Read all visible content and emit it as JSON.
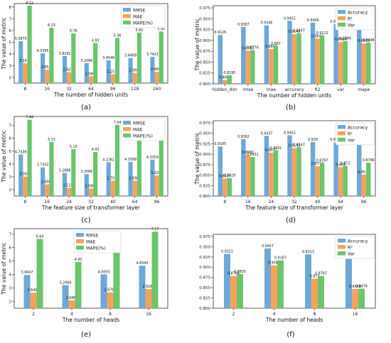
{
  "figure": {
    "colors": {
      "blue": "#6fa8d6",
      "orange": "#f5a35c",
      "green": "#6cc46c"
    },
    "panels": [
      {
        "caption": "(a)"
      },
      {
        "caption": "(b)"
      },
      {
        "caption": "(c)"
      },
      {
        "caption": "(d)"
      },
      {
        "caption": "(e)"
      },
      {
        "caption": "(f)"
      }
    ]
  },
  "chart_data": [
    {
      "type": "bar",
      "xlabel": "The number of hidden units",
      "ylabel": "The value of metric",
      "categories": [
        "8",
        "16",
        "32",
        "64",
        "96",
        "128",
        "160"
      ],
      "ylim": [
        1.5,
        8.3
      ],
      "yticks": [
        2,
        3,
        4,
        5,
        6,
        7,
        8
      ],
      "legend_position": "top-right",
      "series": [
        {
          "name": "RMSE",
          "values": [
            5.0875,
            4.0395,
            3.8192,
            3.2066,
            3.4548,
            3.6489,
            3.7423
          ],
          "labels": [
            "5.0875",
            "4.0395",
            "3.8192",
            "3.2066",
            "3.4548",
            "3.6489",
            "3.7423"
          ]
        },
        {
          "name": "MAE",
          "values": [
            3.1914,
            2.6526,
            2.4279,
            2.0866,
            2.2513,
            2.3667,
            2.4669
          ],
          "labels": [
            "3.1914",
            "2.6526",
            "2.4279",
            "2.0866",
            "2.2513",
            "2.3667",
            "2.4669"
          ]
        },
        {
          "name": "MAPE(%)",
          "values": [
            8.12,
            6.23,
            5.76,
            4.93,
            5.36,
            5.82,
            5.92
          ],
          "labels": [
            "8.12",
            "6.23",
            "5.76",
            "4.93",
            "5.36",
            "5.82",
            "5.92"
          ]
        }
      ]
    },
    {
      "type": "bar",
      "xlabel": "The number of hidden units",
      "ylabel": "The value of metric",
      "categories": [
        "hidden_dim",
        "rmse",
        "mae",
        "accuracy",
        "R2",
        "var",
        "mape"
      ],
      "ylim": [
        0.8,
        0.98
      ],
      "yticks": [
        0.8,
        0.825,
        0.85,
        0.875,
        0.9,
        0.925,
        0.95,
        0.975
      ],
      "legend_position": "top-right",
      "series": [
        {
          "name": "Accuracy",
          "values": [
            0.9126,
            0.9307,
            0.9346,
            0.9452,
            0.9409,
            0.9374,
            0.936
          ],
          "labels": [
            "0.9126",
            "0.9307",
            "0.9346",
            "0.9452",
            "0.9409",
            "0.9374",
            "0.936"
          ]
        },
        {
          "name": "R²",
          "values": [
            0.8089,
            0.8763,
            0.8802,
            0.9145,
            0.9042,
            0.8964,
            0.8931
          ],
          "labels": [
            "0.8089",
            "0.8763",
            "0.8802",
            "0.9145",
            "0.9042",
            "0.8964",
            "0.8931"
          ]
        },
        {
          "name": "Var",
          "values": [
            0.8195,
            0.8776,
            0.887,
            0.9167,
            0.9112,
            0.8986,
            0.8948
          ],
          "labels": [
            "0.8195",
            "0.8776",
            "0.887",
            "0.9167",
            "0.9112",
            "0.8986",
            "0.8948"
          ]
        }
      ]
    },
    {
      "type": "bar",
      "xlabel": "The feature size of transformer layer",
      "ylabel": "The value of metric",
      "categories": [
        "8",
        "16",
        "24",
        "32",
        "40",
        "64",
        "96"
      ],
      "ylim": [
        1.5,
        7.7
      ],
      "yticks": [
        2,
        3,
        4,
        5,
        6,
        7
      ],
      "legend_position": "top-right",
      "series": [
        {
          "name": "RMSE",
          "values": [
            4.7436,
            3.7303,
            3.2888,
            3.2066,
            4.1361,
            4.1589,
            4.3359
          ],
          "labels": [
            "4.7436",
            "3.7303",
            "3.2888",
            "3.2066",
            "4.1361",
            "4.1589",
            "4.3359"
          ]
        },
        {
          "name": "MAE",
          "values": [
            3.0089,
            2.4007,
            2.1333,
            2.0866,
            2.7021,
            2.6982,
            3.1054
          ],
          "labels": [
            "3.0089",
            "2.4007",
            "2.1333",
            "2.0866",
            "2.7021",
            "2.6982",
            "3.1054"
          ]
        },
        {
          "name": "MAPE(%)",
          "values": [
            7.44,
            5.72,
            5.15,
            4.93,
            7.04,
            6.87,
            6.71
          ],
          "labels": [
            "7.44",
            "5.72",
            "5.15",
            "4.93",
            "7.04",
            "6.87",
            "6.71"
          ]
        }
      ]
    },
    {
      "type": "bar",
      "xlabel": "The feature size of transformer layer",
      "ylabel": "The value of metric",
      "categories": [
        "8",
        "16",
        "24",
        "32",
        "40",
        "64",
        "96"
      ],
      "ylim": [
        0.8,
        0.98
      ],
      "yticks": [
        0.8,
        0.825,
        0.85,
        0.875,
        0.9,
        0.925,
        0.95,
        0.975
      ],
      "legend_position": "top-right",
      "series": [
        {
          "name": "Accuracy",
          "values": [
            0.9185,
            0.9362,
            0.9437,
            0.9452,
            0.929,
            0.9287,
            0.9259
          ],
          "labels": [
            "0.9185",
            "0.9362",
            "0.9437",
            "0.9452",
            "0.929",
            "0.9287",
            "0.9259"
          ]
        },
        {
          "name": "R²",
          "values": [
            0.8417,
            0.8981,
            0.9037,
            0.9145,
            0.8714,
            0.869,
            0.8511
          ],
          "labels": [
            "0.8417",
            "0.8981",
            "0.9037",
            "0.9145",
            "0.8714",
            "0.869",
            "0.8511"
          ]
        },
        {
          "name": "Var",
          "values": [
            0.8429,
            0.8931,
            0.9091,
            0.9167,
            0.8787,
            0.872,
            0.8796
          ],
          "labels": [
            "0.8429",
            "0.8931",
            "0.9091",
            "0.9167",
            "0.8787",
            "0.872",
            "0.8796"
          ]
        }
      ]
    },
    {
      "type": "bar",
      "xlabel": "The number of heads",
      "ylabel": "The value of metric",
      "categories": [
        "2",
        "4",
        "8",
        "16"
      ],
      "ylim": [
        1.5,
        7.4
      ],
      "yticks": [
        2,
        3,
        4,
        5,
        6,
        7
      ],
      "legend_position": "top-center",
      "series": [
        {
          "name": "RMSE",
          "values": [
            3.9647,
            3.2066,
            4.0093,
            4.6545
          ],
          "labels": [
            "3.9647",
            "3.2066",
            "4.0093",
            "4.6545"
          ]
        },
        {
          "name": "MAE",
          "values": [
            2.6497,
            2.0866,
            2.6767,
            2.9287
          ],
          "labels": [
            "2.6497",
            "2.0866",
            "2.6767",
            "2.9287"
          ]
        },
        {
          "name": "MAPE(%)",
          "values": [
            6.64,
            4.93,
            6.38,
            7.17
          ],
          "labels": [
            "6.64",
            "4.93",
            "6.38",
            "7.17"
          ]
        }
      ]
    },
    {
      "type": "bar",
      "xlabel": "The number of heads",
      "ylabel": "",
      "categories": [
        "2",
        "4",
        "8",
        "16"
      ],
      "ylim": [
        0.8,
        0.98
      ],
      "yticks": [
        0.8,
        0.825,
        0.85,
        0.875,
        0.9,
        0.925,
        0.95,
        0.975
      ],
      "legend_position": "top-right",
      "series": [
        {
          "name": "Accuracy",
          "values": [
            0.9321,
            0.9457,
            0.9313,
            0.92
          ],
          "labels": [
            "0.9321",
            "0.9457",
            "0.9313",
            "0.92"
          ]
        },
        {
          "name": "R²",
          "values": [
            0.8784,
            0.9046,
            0.872,
            0.8468
          ],
          "labels": [
            "0.8784",
            "0.9046",
            "0.872",
            "0.8468"
          ]
        },
        {
          "name": "Var",
          "values": [
            0.8835,
            0.9167,
            0.8787,
            0.8476
          ],
          "labels": [
            "0.8835",
            "0.9167",
            "0.8787",
            "0.8476"
          ]
        }
      ]
    }
  ]
}
